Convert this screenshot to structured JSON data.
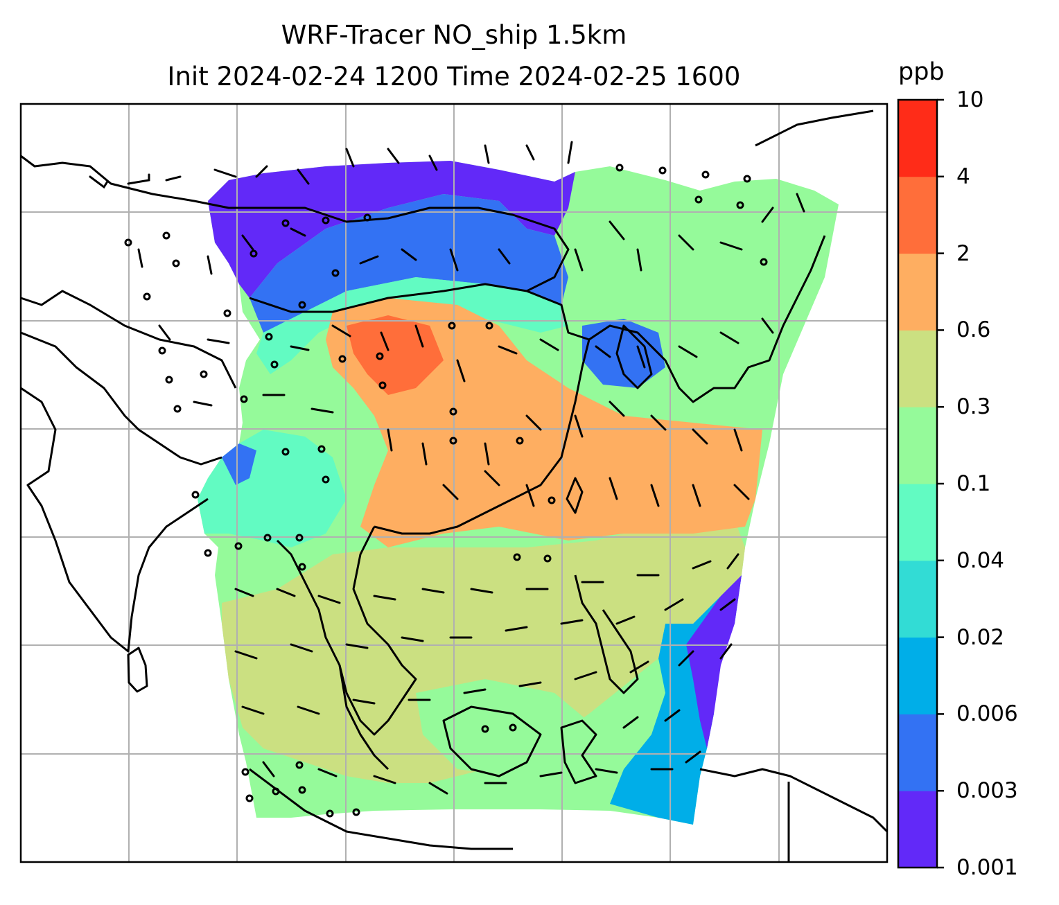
{
  "title": {
    "line1": "WRF-Tracer NO_ship 1.5km",
    "line2": "Init 2024-02-24 1200 Time 2024-02-25 1600"
  },
  "colorbar": {
    "unit": "ppb",
    "levels": [
      "0.001",
      "0.003",
      "0.006",
      "0.02",
      "0.04",
      "0.1",
      "0.3",
      "0.6",
      "2",
      "4",
      "10"
    ],
    "colors": [
      "#6229f8",
      "#3372f3",
      "#00aee8",
      "#32dcd5",
      "#62fbc2",
      "#95fa9a",
      "#cbe081",
      "#feae61",
      "#ff6e3a",
      "#ff2c18"
    ]
  },
  "map": {
    "field": "NO_ship tracer concentration",
    "overlays": [
      "coastlines",
      "country-borders",
      "gridlines",
      "wind-barbs"
    ]
  }
}
